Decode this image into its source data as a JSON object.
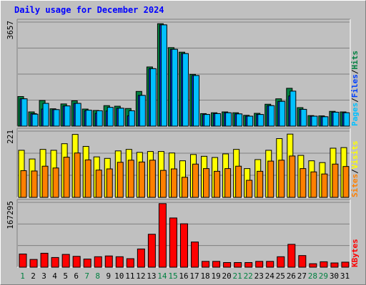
{
  "title": "Daily usage for December 2024",
  "colors": {
    "frame_bg": "#c0c0c0",
    "hits": "#008040",
    "files": "#0040ff",
    "pages": "#00c0ff",
    "visits": "#ffff00",
    "sites": "#ff8000",
    "kbytes": "#ff0000",
    "weekday_label": "#000000",
    "weekend_label": "#008040",
    "title": "#0000ff"
  },
  "chart_data": [
    {
      "type": "bar",
      "panel": "hits-files-pages",
      "y_max_label": "3657",
      "ylim": [
        0,
        3657
      ],
      "grid": true,
      "legend": {
        "items": [
          "Pages",
          "Files",
          "Hits"
        ],
        "separator": "/",
        "placement": "right-vertical"
      },
      "categories": [
        "1",
        "2",
        "3",
        "4",
        "5",
        "6",
        "7",
        "8",
        "9",
        "10",
        "11",
        "12",
        "13",
        "14",
        "15",
        "16",
        "17",
        "18",
        "19",
        "20",
        "21",
        "22",
        "23",
        "24",
        "25",
        "26",
        "27",
        "28",
        "29",
        "30",
        "31"
      ],
      "weekend_days": [
        "1",
        "7",
        "8",
        "14",
        "15",
        "21",
        "22",
        "28",
        "29"
      ],
      "series": [
        {
          "name": "Hits",
          "values": [
            1040,
            500,
            900,
            610,
            780,
            890,
            600,
            550,
            720,
            700,
            620,
            1220,
            2080,
            3600,
            2760,
            2600,
            1820,
            440,
            470,
            500,
            470,
            380,
            450,
            770,
            960,
            1330,
            650,
            370,
            360,
            520,
            500
          ]
        },
        {
          "name": "Files",
          "values": [
            960,
            440,
            600,
            580,
            710,
            800,
            540,
            450,
            530,
            630,
            360,
            1080,
            2020,
            3560,
            2700,
            2550,
            1780,
            410,
            440,
            470,
            430,
            350,
            410,
            720,
            870,
            1060,
            590,
            350,
            330,
            490,
            470
          ]
        },
        {
          "name": "Pages",
          "values": [
            960,
            420,
            800,
            580,
            710,
            800,
            560,
            540,
            660,
            630,
            540,
            1080,
            2020,
            3560,
            2700,
            2550,
            1780,
            410,
            440,
            470,
            430,
            350,
            410,
            720,
            870,
            1230,
            590,
            350,
            330,
            490,
            470
          ]
        }
      ]
    },
    {
      "type": "bar",
      "panel": "visits-sites",
      "y_max_label": "221",
      "ylim": [
        0,
        221
      ],
      "grid": true,
      "legend": {
        "items": [
          "Sites",
          "Visits"
        ],
        "separator": "/",
        "placement": "right-vertical"
      },
      "categories": [
        "1",
        "2",
        "3",
        "4",
        "5",
        "6",
        "7",
        "8",
        "9",
        "10",
        "11",
        "12",
        "13",
        "14",
        "15",
        "16",
        "17",
        "18",
        "19",
        "20",
        "21",
        "22",
        "23",
        "24",
        "25",
        "26",
        "27",
        "28",
        "29",
        "30",
        "31"
      ],
      "series": [
        {
          "name": "Visits",
          "values": [
            157,
            128,
            160,
            157,
            179,
            210,
            170,
            135,
            130,
            155,
            160,
            150,
            153,
            153,
            148,
            122,
            143,
            137,
            133,
            145,
            160,
            96,
            126,
            157,
            196,
            211,
            140,
            122,
            116,
            164,
            166
          ]
        },
        {
          "name": "Sites",
          "values": [
            89,
            88,
            104,
            98,
            134,
            148,
            125,
            91,
            95,
            117,
            124,
            118,
            124,
            90,
            95,
            67,
            111,
            96,
            87,
            96,
            104,
            57,
            87,
            121,
            124,
            138,
            96,
            85,
            78,
            111,
            103
          ]
        }
      ]
    },
    {
      "type": "bar",
      "panel": "kbytes",
      "y_max_label": "167295",
      "ylim": [
        0,
        167295
      ],
      "grid": true,
      "legend": {
        "items": [
          "KBytes"
        ],
        "separator": "",
        "placement": "right-vertical"
      },
      "categories": [
        "1",
        "2",
        "3",
        "4",
        "5",
        "6",
        "7",
        "8",
        "9",
        "10",
        "11",
        "12",
        "13",
        "14",
        "15",
        "16",
        "17",
        "18",
        "19",
        "20",
        "21",
        "22",
        "23",
        "24",
        "25",
        "26",
        "27",
        "28",
        "29",
        "30",
        "31"
      ],
      "series": [
        {
          "name": "KBytes",
          "values": [
            34000,
            20000,
            36000,
            25000,
            33000,
            28000,
            21000,
            27000,
            29000,
            27000,
            22000,
            47000,
            85000,
            164000,
            127000,
            112000,
            65000,
            15000,
            15000,
            12000,
            12000,
            12000,
            15000,
            15000,
            27000,
            59000,
            30000,
            9000,
            14000,
            11000,
            13000
          ]
        }
      ]
    }
  ]
}
